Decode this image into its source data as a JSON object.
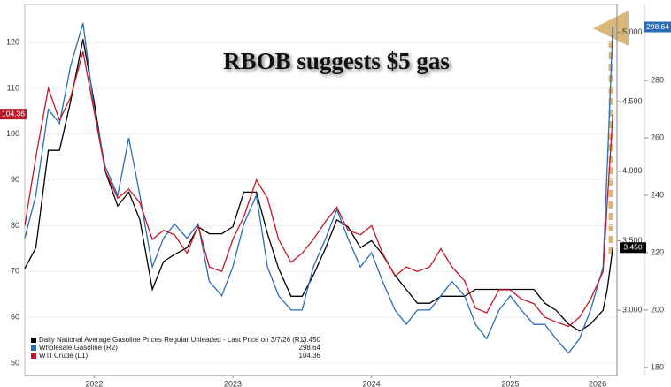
{
  "chart_data": {
    "type": "line",
    "annotation": "RBOB suggests $5 gas",
    "x": [
      2022.0,
      2022.08,
      2022.17,
      2022.25,
      2022.33,
      2022.42,
      2022.5,
      2022.58,
      2022.67,
      2022.75,
      2022.83,
      2022.92,
      2023.0,
      2023.08,
      2023.17,
      2023.25,
      2023.33,
      2023.42,
      2023.5,
      2023.58,
      2023.67,
      2023.75,
      2023.83,
      2023.92,
      2024.0,
      2024.08,
      2024.17,
      2024.25,
      2024.33,
      2024.42,
      2024.5,
      2024.58,
      2024.67,
      2024.75,
      2024.83,
      2024.92,
      2025.0,
      2025.08,
      2025.17,
      2025.25,
      2025.33,
      2025.42,
      2025.5,
      2025.58,
      2025.67,
      2025.75,
      2025.83,
      2025.92,
      2026.0,
      2026.08,
      2026.17,
      2026.2,
      2026.24
    ],
    "xlim": [
      2022,
      2026.27
    ],
    "xticks": [
      {
        "value": 2022.5,
        "label": "2022"
      },
      {
        "value": 2023.5,
        "label": "2023"
      },
      {
        "value": 2024.5,
        "label": "2024"
      },
      {
        "value": 2025.5,
        "label": "2025"
      },
      {
        "value": 2026.13,
        "label": "2026"
      }
    ],
    "ylim": [
      47.3,
      128.3
    ],
    "yticks": [
      50,
      60,
      70,
      80,
      90,
      100,
      110,
      120
    ],
    "y2lim": [
      2.53,
      5.2
    ],
    "y2ticks": [
      {
        "value": 3,
        "label": "3.000"
      },
      {
        "value": 3.5,
        "label": "3.500"
      },
      {
        "value": 4,
        "label": "4.000"
      },
      {
        "value": 4.5,
        "label": "4.500"
      },
      {
        "value": 5,
        "label": "5.000"
      }
    ],
    "y3lim": [
      177.2,
      306.5
    ],
    "y3ticks": [
      180,
      200,
      220,
      240,
      260,
      280
    ],
    "grid": true,
    "legend": "lower left",
    "series": [
      {
        "name": "Daily National Average Gasoline Prices Regular Unleaded - Last Price on 3/7/26 (R1)",
        "color": "#000000",
        "axis": "y2",
        "last_label": "3.450",
        "values": [
          3.3,
          3.45,
          4.15,
          4.15,
          4.5,
          4.95,
          4.5,
          4.0,
          3.75,
          3.85,
          3.65,
          3.15,
          3.35,
          3.4,
          3.45,
          3.6,
          3.55,
          3.55,
          3.6,
          3.85,
          3.85,
          3.55,
          3.3,
          3.1,
          3.1,
          3.25,
          3.45,
          3.65,
          3.6,
          3.45,
          3.5,
          3.4,
          3.25,
          3.15,
          3.05,
          3.05,
          3.1,
          3.1,
          3.1,
          3.15,
          3.15,
          3.15,
          3.15,
          3.15,
          3.15,
          3.05,
          3.0,
          2.9,
          2.85,
          2.9,
          3.0,
          3.15,
          3.45
        ]
      },
      {
        "name": "Wholesale Gasoline (R2)",
        "color": "#2a6db5",
        "axis": "y3",
        "last_label": "298.64",
        "values": [
          225,
          240,
          270,
          265,
          285,
          300,
          270,
          250,
          240,
          260,
          240,
          215,
          225,
          230,
          225,
          230,
          210,
          205,
          215,
          230,
          240,
          215,
          205,
          200,
          200,
          215,
          225,
          235,
          225,
          215,
          220,
          210,
          200,
          195,
          200,
          200,
          205,
          210,
          205,
          195,
          190,
          200,
          205,
          200,
          195,
          195,
          190,
          185,
          190,
          200,
          215,
          250,
          298.64
        ]
      },
      {
        "name": "WTI Crude (L1)",
        "color": "#c0182a",
        "axis": "y",
        "last_label": "104.36",
        "values": [
          80,
          95,
          110,
          103,
          108,
          118,
          105,
          92,
          86,
          88,
          85,
          77,
          79,
          78,
          74,
          80,
          71,
          70,
          77,
          82,
          90,
          86,
          77,
          72,
          74,
          77,
          81,
          84,
          79,
          78,
          80,
          74,
          69,
          71,
          70,
          71,
          75,
          71,
          68,
          62,
          61,
          66,
          66,
          64,
          63,
          60,
          59,
          58,
          60,
          64,
          70,
          85,
          104.36
        ]
      }
    ]
  }
}
